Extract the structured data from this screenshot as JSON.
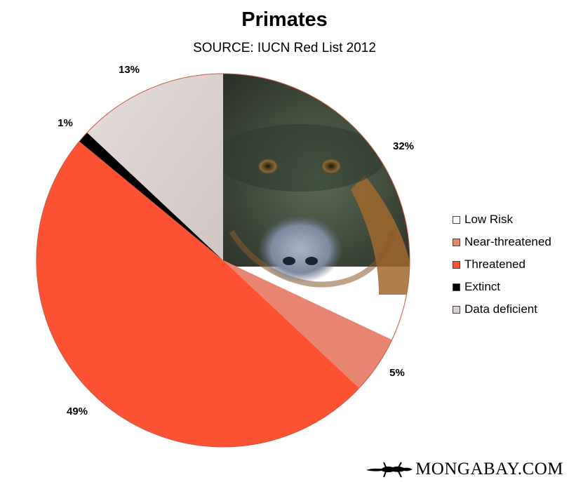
{
  "title": "Primates",
  "subtitle": "SOURCE: IUCN Red List 2012",
  "brand": {
    "name": "MONGABAY.COM",
    "icon": "gecko-icon"
  },
  "chart_data": {
    "type": "pie",
    "title": "Primates",
    "subtitle": "SOURCE: IUCN Red List 2012",
    "start_angle_deg": 0,
    "direction": "clockwise",
    "legend_position": "right",
    "slices": [
      {
        "name": "Low Risk",
        "value": 32,
        "label": "32%",
        "color": "#ffffff",
        "photo_fill": true
      },
      {
        "name": "Near-threatened",
        "value": 5,
        "label": "5%",
        "color": "#e88570"
      },
      {
        "name": "Threatened",
        "value": 49,
        "label": "49%",
        "color": "#fc5233"
      },
      {
        "name": "Extinct",
        "value": 1,
        "label": "1%",
        "color": "#000000"
      },
      {
        "name": "Data deficient",
        "value": 13,
        "label": "13%",
        "color": "#d9cfcd"
      }
    ]
  }
}
